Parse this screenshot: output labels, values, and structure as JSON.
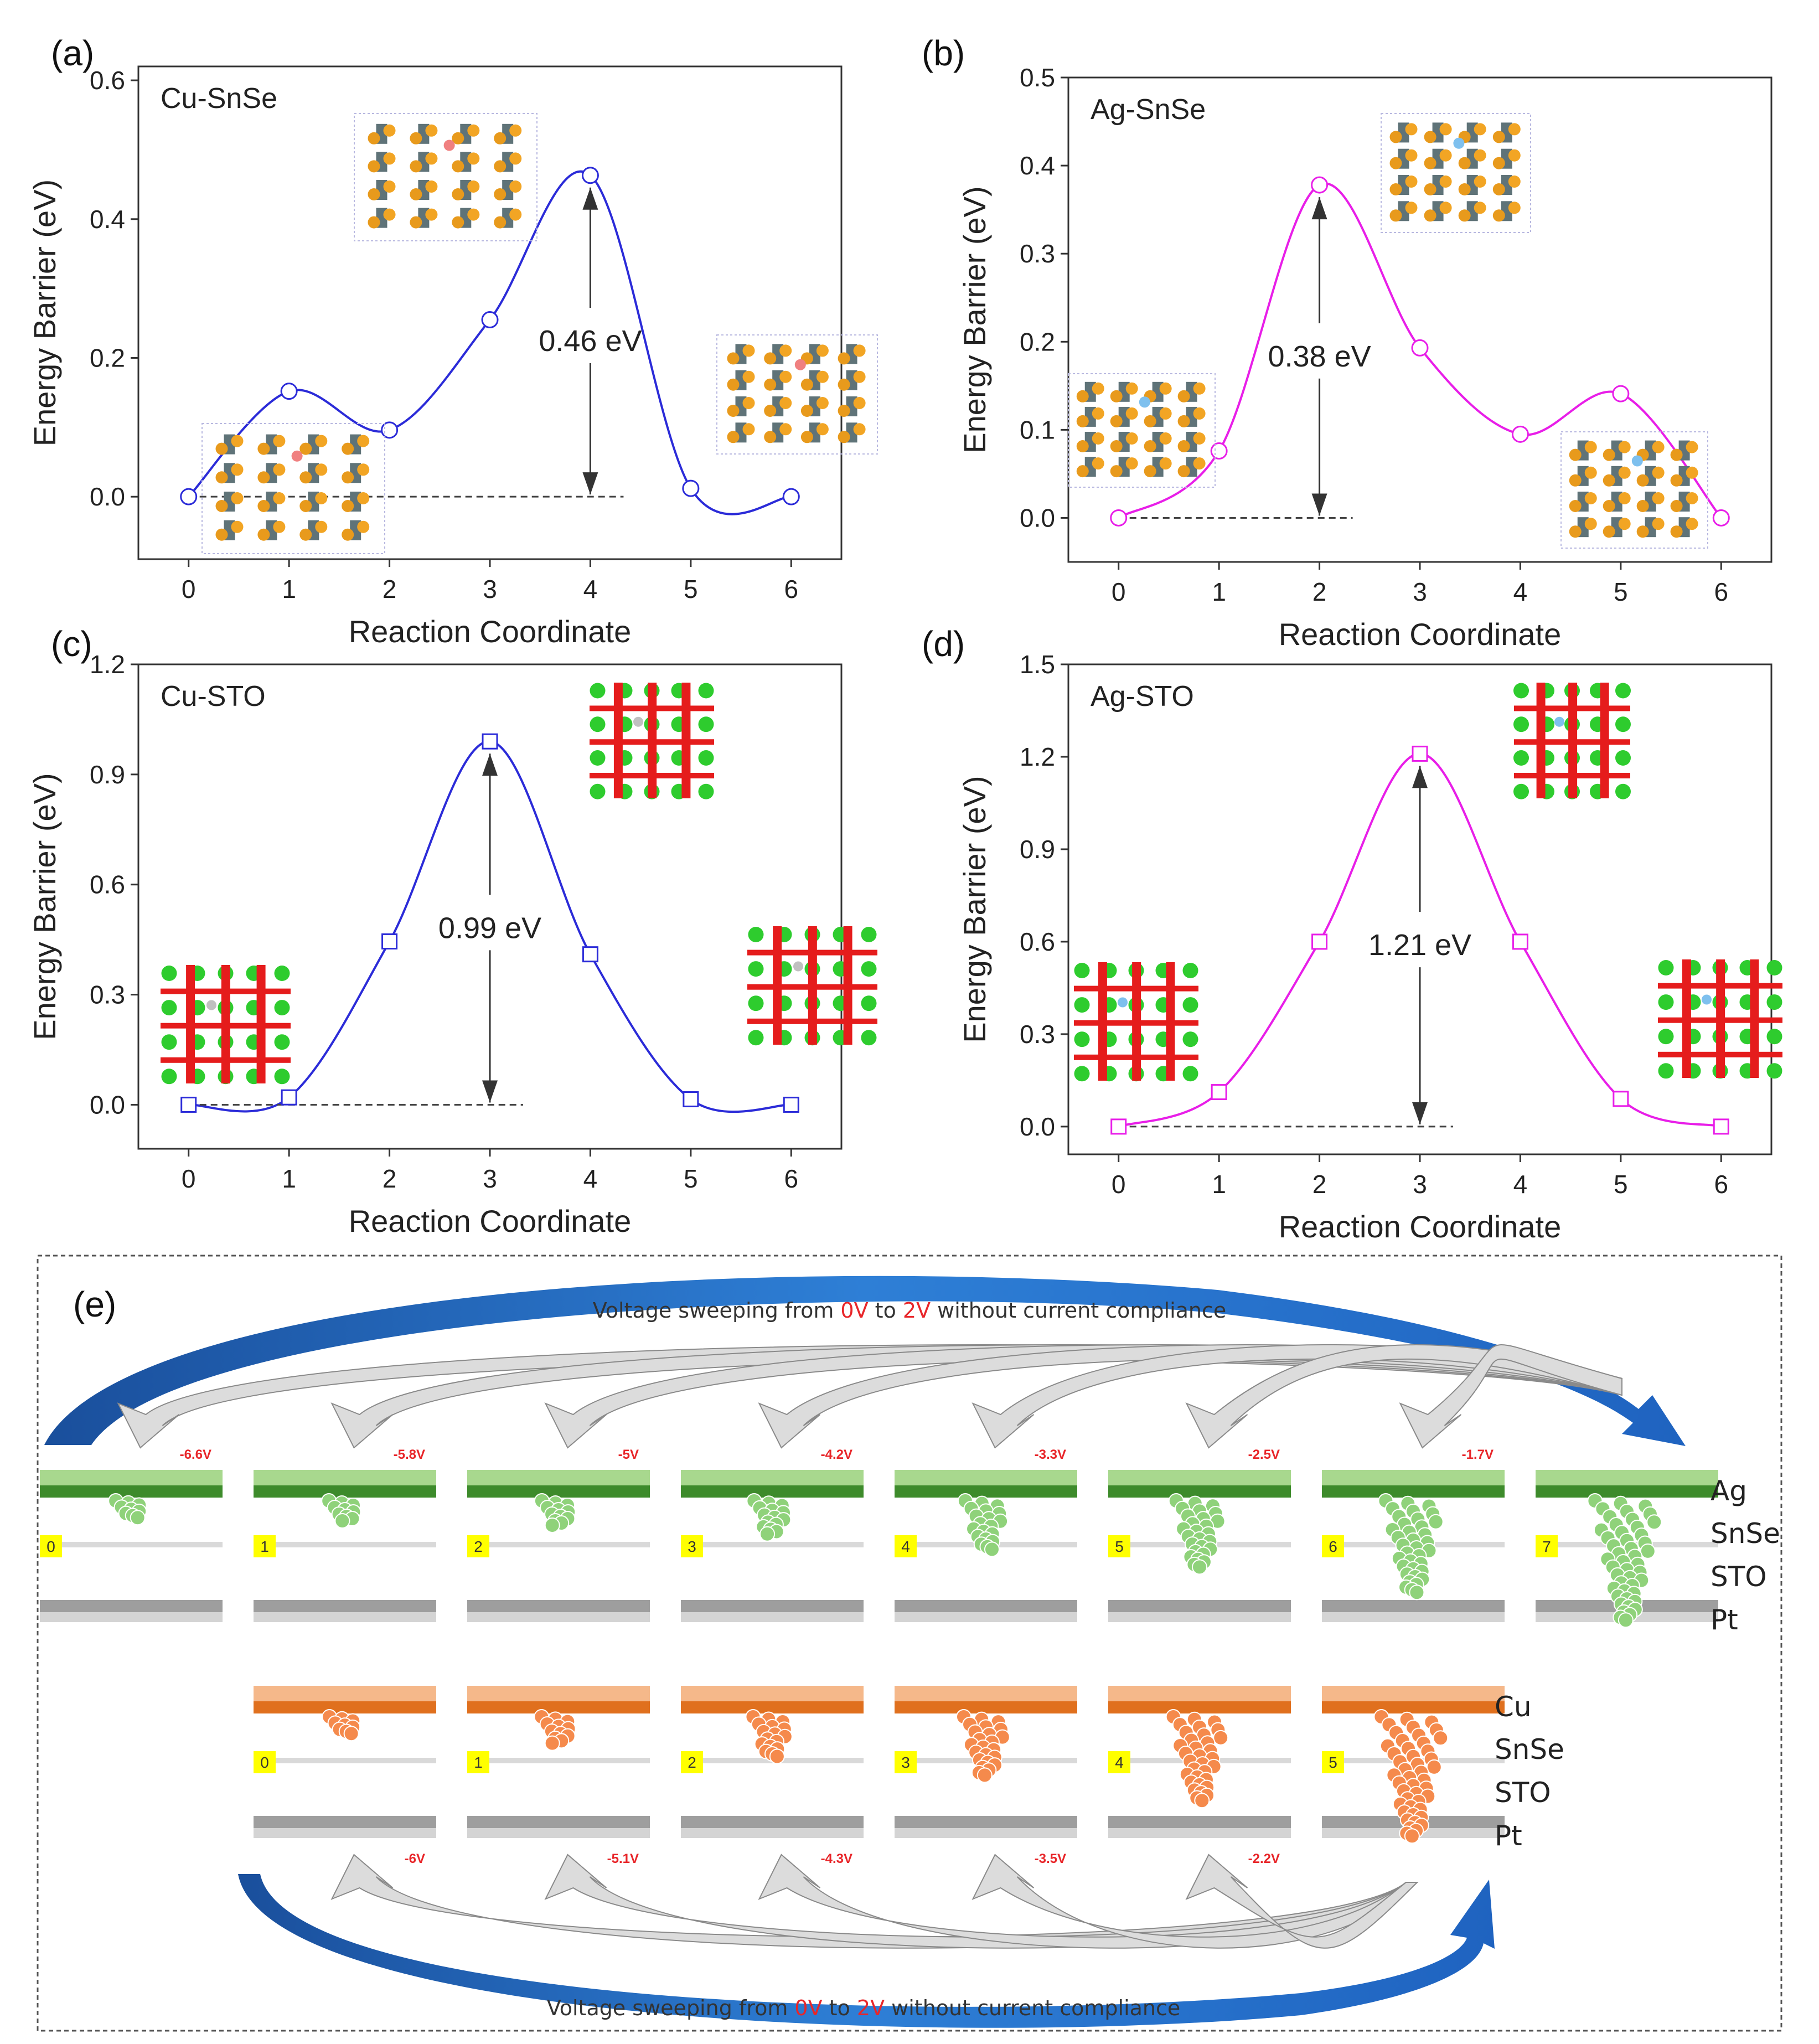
{
  "chart_data": [
    {
      "id": "a",
      "type": "line",
      "panel_label": "(a)",
      "title": "Cu-SnSe",
      "xlabel": "Reaction Coordinate",
      "ylabel": "Energy Barrier (eV)",
      "x": [
        0,
        1,
        2,
        3,
        4,
        5,
        6
      ],
      "y": [
        0.0,
        0.152,
        0.096,
        0.255,
        0.463,
        0.012,
        0.0
      ],
      "xlim": [
        -0.5,
        6.5
      ],
      "ylim": [
        -0.09,
        0.62
      ],
      "xticks": [
        "0",
        "1",
        "2",
        "3",
        "4",
        "5",
        "6"
      ],
      "yticks": [
        0.0,
        0.2,
        0.4,
        0.6
      ],
      "ytick_labels": [
        "0.0",
        "0.2",
        "0.4",
        "0.6"
      ],
      "marker": "circle",
      "color": "#2b2bd8",
      "barrier_label": "0.46 eV",
      "barrier_x": 4,
      "barrier_value": 0.463
    },
    {
      "id": "b",
      "type": "line",
      "panel_label": "(b)",
      "title": "Ag-SnSe",
      "xlabel": "Reaction Coordinate",
      "ylabel": "Energy Barrier (eV)",
      "x": [
        0,
        1,
        2,
        3,
        4,
        5,
        6
      ],
      "y": [
        0.0,
        0.076,
        0.378,
        0.193,
        0.095,
        0.141,
        0.0
      ],
      "xlim": [
        -0.5,
        6.5
      ],
      "ylim": [
        -0.05,
        0.5
      ],
      "xticks": [
        "0",
        "1",
        "2",
        "3",
        "4",
        "5",
        "6"
      ],
      "yticks": [
        0.0,
        0.1,
        0.2,
        0.3,
        0.4,
        0.5
      ],
      "ytick_labels": [
        "0.0",
        "0.1",
        "0.2",
        "0.3",
        "0.4",
        "0.5"
      ],
      "marker": "circle",
      "color": "#e81ee8",
      "barrier_label": "0.38 eV",
      "barrier_x": 2,
      "barrier_value": 0.378
    },
    {
      "id": "c",
      "type": "line",
      "panel_label": "(c)",
      "title": "Cu-STO",
      "xlabel": "Reaction Coordinate",
      "ylabel": "Energy Barrier (eV)",
      "x": [
        0,
        1,
        2,
        3,
        4,
        5,
        6
      ],
      "y": [
        0.0,
        0.02,
        0.445,
        0.99,
        0.41,
        0.015,
        0.0
      ],
      "xlim": [
        -0.5,
        6.5
      ],
      "ylim": [
        -0.12,
        1.2
      ],
      "xticks": [
        "0",
        "1",
        "2",
        "3",
        "4",
        "5",
        "6"
      ],
      "yticks": [
        0.0,
        0.3,
        0.6,
        0.9,
        1.2
      ],
      "ytick_labels": [
        "0.0",
        "0.3",
        "0.6",
        "0.9",
        "1.2"
      ],
      "marker": "square",
      "color": "#2b2bd8",
      "barrier_label": "0.99 eV",
      "barrier_x": 3,
      "barrier_value": 0.99
    },
    {
      "id": "d",
      "type": "line",
      "panel_label": "(d)",
      "title": "Ag-STO",
      "xlabel": "Reaction Coordinate",
      "ylabel": "Energy Barrier (eV)",
      "x": [
        0,
        1,
        2,
        3,
        4,
        5,
        6
      ],
      "y": [
        0.0,
        0.112,
        0.6,
        1.21,
        0.6,
        0.09,
        0.0
      ],
      "xlim": [
        -0.5,
        6.5
      ],
      "ylim": [
        -0.09,
        1.5
      ],
      "xticks": [
        "0",
        "1",
        "2",
        "3",
        "4",
        "5",
        "6"
      ],
      "yticks": [
        0.0,
        0.3,
        0.6,
        0.9,
        1.2,
        1.5
      ],
      "ytick_labels": [
        "0.0",
        "0.3",
        "0.6",
        "0.9",
        "1.2",
        "1.5"
      ],
      "marker": "square",
      "color": "#e81ee8",
      "barrier_label": "1.21 eV",
      "barrier_x": 3,
      "barrier_value": 1.21
    }
  ],
  "panel_e": {
    "label": "(e)",
    "sweep_text": {
      "before": "Voltage sweeping from ",
      "v_start": "0V",
      "to": " to ",
      "v_end": "2V",
      "after": " without current compliance"
    },
    "ag_row": {
      "voltages": [
        "-6.6V",
        "-5.8V",
        "-5V",
        "-4.2V",
        "-3.3V",
        "-2.5V",
        "-1.7V"
      ],
      "steps": [
        "0",
        "1",
        "2",
        "3",
        "4",
        "5",
        "6",
        "7"
      ],
      "layers": [
        "Ag",
        "SnSe",
        "STO",
        "Pt"
      ],
      "electrode_color": "#3d8b2b",
      "electrode_light": "#a8d88e",
      "particle_color": "#8fd27a"
    },
    "cu_row": {
      "voltages": [
        "-6V",
        "-5.1V",
        "-4.3V",
        "-3.5V",
        "-2.2V"
      ],
      "steps": [
        "0",
        "1",
        "2",
        "3",
        "4",
        "5"
      ],
      "layers": [
        "Cu",
        "SnSe",
        "STO",
        "Pt"
      ],
      "electrode_color": "#e0701e",
      "electrode_light": "#f5b88a",
      "particle_color": "#f58a4c"
    },
    "arrow_color": "#1f5fb0"
  }
}
